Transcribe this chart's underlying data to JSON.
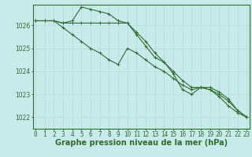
{
  "xlabel": "Graphe pression niveau de la mer (hPa)",
  "background_color": "#c8eaea",
  "grid_color": "#b0d8d8",
  "line_color": "#2d6e2d",
  "x_ticks": [
    0,
    1,
    2,
    3,
    4,
    5,
    6,
    7,
    8,
    9,
    10,
    11,
    12,
    13,
    14,
    15,
    16,
    17,
    18,
    19,
    20,
    21,
    22,
    23
  ],
  "ylim": [
    1021.5,
    1026.9
  ],
  "xlim": [
    -0.3,
    23.3
  ],
  "series1": [
    1026.2,
    1026.2,
    1026.2,
    1026.1,
    1026.2,
    1026.8,
    1026.7,
    1026.6,
    1026.5,
    1026.2,
    1026.1,
    1025.7,
    1025.3,
    1024.8,
    1024.4,
    1024.0,
    1023.6,
    1023.3,
    1023.3,
    1023.2,
    1022.9,
    1022.5,
    1022.2,
    1022.0
  ],
  "series2": [
    1026.2,
    1026.2,
    1026.2,
    1026.1,
    1026.1,
    1026.1,
    1026.1,
    1026.1,
    1026.1,
    1026.1,
    1026.1,
    1025.6,
    1025.1,
    1024.6,
    1024.4,
    1023.9,
    1023.2,
    1023.0,
    1023.3,
    1023.3,
    1023.1,
    1022.8,
    1022.3,
    1022.0
  ],
  "series3": [
    1026.2,
    1026.2,
    1026.2,
    1025.9,
    1025.6,
    1025.3,
    1025.0,
    1024.8,
    1024.5,
    1024.3,
    1025.0,
    1024.8,
    1024.5,
    1024.2,
    1024.0,
    1023.7,
    1023.4,
    1023.2,
    1023.3,
    1023.2,
    1023.0,
    1022.7,
    1022.3,
    1022.0
  ],
  "yticks": [
    1022,
    1023,
    1024,
    1025,
    1026
  ],
  "marker": "+",
  "markersize": 3,
  "linewidth": 0.8,
  "xlabel_fontsize": 7,
  "tick_fontsize": 5.5
}
